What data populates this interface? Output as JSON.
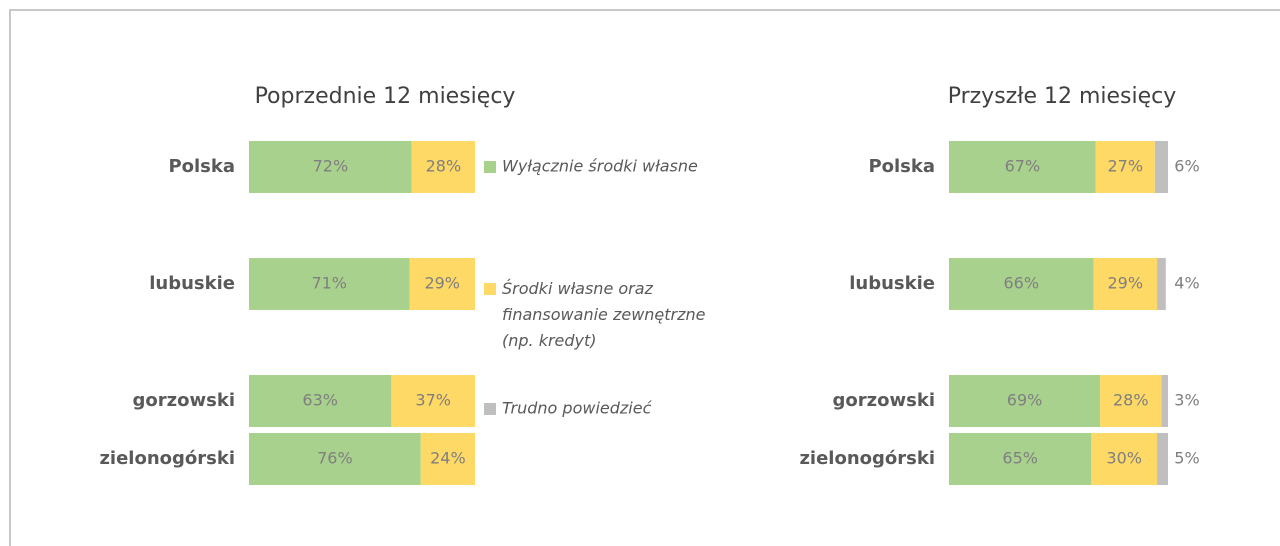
{
  "chart_data": [
    {
      "type": "stacked-bar",
      "title": "Poprzednie 12 miesięcy",
      "categories": [
        "Polska",
        "lubuskie",
        "gorzowski",
        "zielonogórski"
      ],
      "series": [
        {
          "name": "Wyłącznie środki własne",
          "color": "#a9d18e",
          "values": [
            72,
            71,
            63,
            76
          ]
        },
        {
          "name": "Środki własne oraz\nfinansowanie zewnętrzne\n(np. kredyt)",
          "color": "#ffd966",
          "values": [
            28,
            29,
            37,
            24
          ]
        },
        {
          "name": "Trudno powiedzieć",
          "color": "#bfbfbf",
          "values": [
            null,
            null,
            null,
            null
          ]
        }
      ]
    },
    {
      "type": "stacked-bar",
      "title": "Przyszłe 12 miesięcy",
      "categories": [
        "Polska",
        "lubuskie",
        "gorzowski",
        "zielonogórski"
      ],
      "series": [
        {
          "color": "#a9d18e",
          "values": [
            67,
            66,
            69,
            65
          ]
        },
        {
          "color": "#ffd966",
          "values": [
            27,
            29,
            28,
            30
          ]
        },
        {
          "color": "#bfbfbf",
          "values": [
            6,
            4,
            3,
            5
          ]
        }
      ]
    }
  ]
}
